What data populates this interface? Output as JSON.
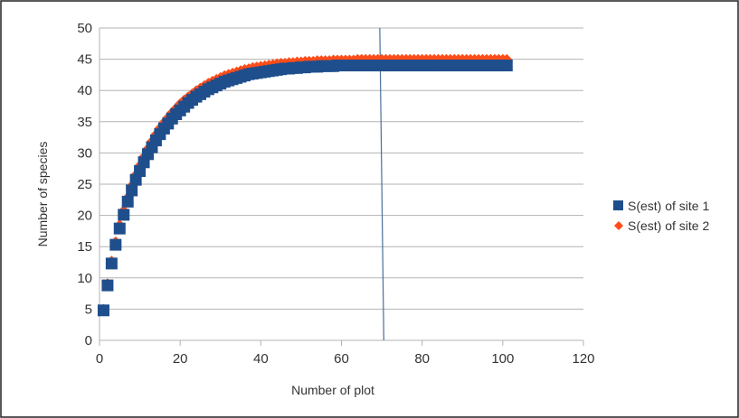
{
  "chart_data": {
    "type": "scatter",
    "xlabel": "Number of plot",
    "ylabel": "Number of species",
    "xlim": [
      0,
      120
    ],
    "ylim": [
      0,
      50
    ],
    "xticks": [
      0,
      20,
      40,
      60,
      80,
      100,
      120
    ],
    "yticks": [
      0,
      5,
      10,
      15,
      20,
      25,
      30,
      35,
      40,
      45,
      50
    ],
    "grid": "horizontal",
    "legend_position": "right",
    "reference_line": {
      "from": [
        69.5,
        50
      ],
      "to": [
        70.5,
        0
      ],
      "color": "#4a6f9a"
    },
    "colors": {
      "site1": "#1f4e8c",
      "site2": "#ff4d1a"
    },
    "series": [
      {
        "name": "S(est) of site 1",
        "marker": "square",
        "x": [
          1,
          2,
          3,
          4,
          5,
          6,
          7,
          8,
          9,
          10,
          11,
          12,
          13,
          14,
          15,
          16,
          17,
          18,
          19,
          20,
          21,
          22,
          23,
          24,
          25,
          26,
          27,
          28,
          29,
          30,
          31,
          32,
          33,
          34,
          35,
          36,
          37,
          38,
          39,
          40,
          41,
          42,
          43,
          44,
          45,
          46,
          47,
          48,
          49,
          50,
          51,
          52,
          53,
          54,
          55,
          56,
          57,
          58,
          59,
          60,
          61,
          62,
          63,
          64,
          65,
          66,
          67,
          68,
          69,
          70,
          71,
          72,
          73,
          74,
          75,
          76,
          77,
          78,
          79,
          80,
          81,
          82,
          83,
          84,
          85,
          86,
          87,
          88,
          89,
          90,
          91,
          92,
          93,
          94,
          95,
          96,
          97,
          98,
          99,
          100,
          101
        ],
        "y": [
          4.8,
          8.8,
          12.3,
          15.3,
          17.9,
          20.1,
          22.2,
          24.0,
          25.7,
          27.1,
          28.5,
          29.8,
          30.9,
          32.0,
          33.0,
          33.9,
          34.7,
          35.5,
          36.2,
          36.8,
          37.4,
          38.0,
          38.5,
          39.0,
          39.4,
          39.8,
          40.2,
          40.5,
          40.8,
          41.1,
          41.4,
          41.6,
          41.8,
          42.0,
          42.2,
          42.4,
          42.6,
          42.7,
          42.8,
          42.9,
          43.0,
          43.1,
          43.2,
          43.3,
          43.4,
          43.5,
          43.5,
          43.6,
          43.6,
          43.7,
          43.7,
          43.8,
          43.8,
          43.8,
          43.9,
          43.9,
          43.9,
          43.9,
          44.0,
          44.0,
          44.0,
          44.0,
          44.0,
          44.0,
          44.0,
          44.0,
          44.0,
          44.0,
          44.0,
          44.0,
          44.0,
          44.0,
          44.0,
          44.0,
          44.0,
          44.0,
          44.0,
          44.0,
          44.0,
          44.0,
          44.0,
          44.0,
          44.0,
          44.0,
          44.0,
          44.0,
          44.0,
          44.0,
          44.0,
          44.0,
          44.0,
          44.0,
          44.0,
          44.0,
          44.0,
          44.0,
          44.0,
          44.0,
          44.0,
          44.0,
          44.0
        ]
      },
      {
        "name": "S(est) of site 2",
        "marker": "diamond",
        "x": [
          1,
          2,
          3,
          4,
          5,
          6,
          7,
          8,
          9,
          10,
          11,
          12,
          13,
          14,
          15,
          16,
          17,
          18,
          19,
          20,
          21,
          22,
          23,
          24,
          25,
          26,
          27,
          28,
          29,
          30,
          31,
          32,
          33,
          34,
          35,
          36,
          37,
          38,
          39,
          40,
          41,
          42,
          43,
          44,
          45,
          46,
          47,
          48,
          49,
          50,
          51,
          52,
          53,
          54,
          55,
          56,
          57,
          58,
          59,
          60,
          61,
          62,
          63,
          64,
          65,
          66,
          67,
          68,
          69,
          70,
          71,
          72,
          73,
          74,
          75,
          76,
          77,
          78,
          79,
          80,
          81,
          82,
          83,
          84,
          85,
          86,
          87,
          88,
          89,
          90,
          91,
          92,
          93,
          94,
          95,
          96,
          97,
          98,
          99,
          100,
          101
        ],
        "y": [
          4.9,
          9.0,
          12.6,
          15.7,
          18.4,
          20.7,
          22.8,
          24.7,
          26.4,
          27.9,
          29.3,
          30.6,
          31.8,
          32.9,
          33.9,
          34.8,
          35.6,
          36.4,
          37.1,
          37.8,
          38.4,
          38.9,
          39.4,
          39.9,
          40.3,
          40.7,
          41.1,
          41.4,
          41.7,
          42.0,
          42.3,
          42.5,
          42.7,
          42.9,
          43.1,
          43.3,
          43.4,
          43.6,
          43.7,
          43.8,
          43.9,
          44.0,
          44.1,
          44.2,
          44.3,
          44.3,
          44.4,
          44.4,
          44.5,
          44.5,
          44.6,
          44.6,
          44.6,
          44.7,
          44.7,
          44.7,
          44.7,
          44.8,
          44.8,
          44.8,
          44.8,
          44.8,
          44.8,
          44.9,
          44.9,
          44.9,
          44.9,
          44.9,
          44.9,
          44.9,
          44.9,
          44.9,
          44.9,
          44.9,
          44.9,
          44.9,
          44.9,
          44.9,
          44.9,
          44.9,
          44.9,
          44.9,
          44.9,
          44.9,
          44.9,
          44.9,
          44.9,
          44.9,
          44.9,
          44.9,
          44.9,
          44.9,
          44.9,
          44.9,
          44.9,
          44.9,
          44.9,
          44.9,
          44.9,
          44.9,
          44.9
        ]
      }
    ]
  }
}
